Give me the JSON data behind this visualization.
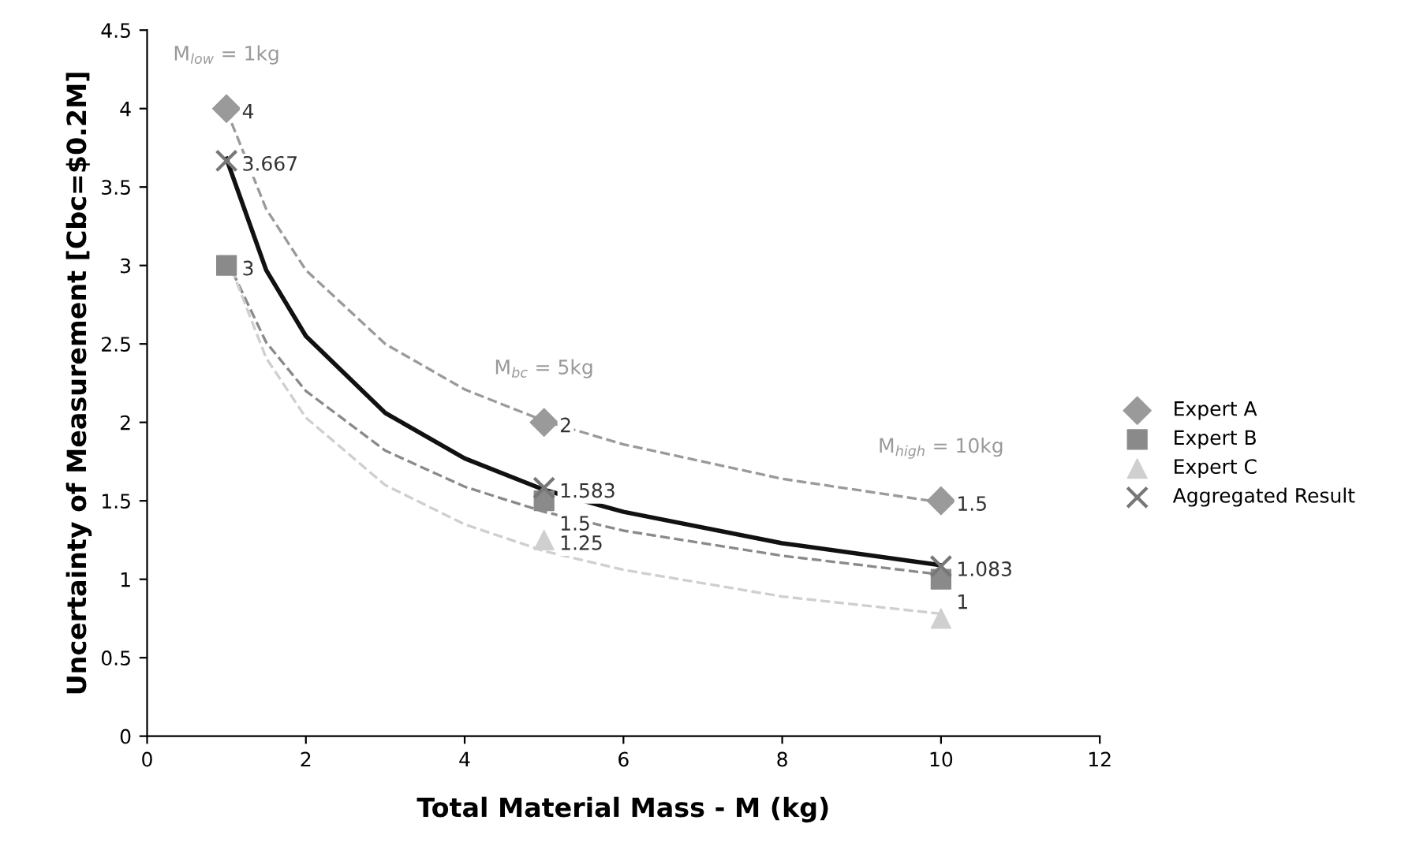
{
  "chart_data": {
    "type": "scatter",
    "xlabel": "Total Material Mass - M (kg)",
    "ylabel": "Uncertainty of Measurement [Cbc=$0.2M]",
    "x": [
      1,
      5,
      10
    ],
    "series": [
      {
        "type": "line",
        "color": "#9a9a9a",
        "line_style": "dashed",
        "x": [
          1,
          1.5,
          2,
          3,
          4,
          5,
          6,
          8,
          10
        ],
        "values": [
          3.99,
          3.36,
          2.97,
          2.5,
          2.21,
          2.01,
          1.86,
          1.64,
          1.49
        ]
      },
      {
        "type": "line",
        "color": "#8a8a8a",
        "line_style": "dashed",
        "x": [
          1,
          1.5,
          2,
          3,
          4,
          5,
          6,
          8,
          10
        ],
        "values": [
          3.04,
          2.51,
          2.2,
          1.82,
          1.59,
          1.43,
          1.31,
          1.15,
          1.03
        ]
      },
      {
        "type": "line",
        "color": "#cfcfcf",
        "line_style": "dashed",
        "x": [
          1,
          1.5,
          2,
          3,
          4,
          5,
          6,
          8,
          10
        ],
        "values": [
          3.06,
          2.41,
          2.03,
          1.6,
          1.35,
          1.18,
          1.06,
          0.89,
          0.78
        ]
      },
      {
        "type": "line",
        "color": "#111111",
        "line_style": "solid",
        "x": [
          1,
          1.5,
          2,
          3,
          4,
          5,
          6,
          8,
          10
        ],
        "values": [
          3.68,
          2.97,
          2.55,
          2.06,
          1.77,
          1.57,
          1.43,
          1.23,
          1.09
        ]
      },
      {
        "name": "Expert A",
        "color": "#9a9a9a",
        "values": [
          4,
          2,
          1.5
        ],
        "marker": "diamond",
        "value_labels": [
          "4",
          "2",
          "1.5"
        ]
      },
      {
        "name": "Expert B",
        "color": "#8a8a8a",
        "values": [
          3,
          1.5,
          1
        ],
        "marker": "square",
        "value_labels": [
          "3",
          "1.5",
          "1"
        ]
      },
      {
        "name": "Expert C",
        "color": "#cfcfcf",
        "values": [
          null,
          1.25,
          0.75
        ],
        "marker": "triangle",
        "value_labels": [
          null,
          "1.25",
          null
        ]
      },
      {
        "name": "Aggregated Result",
        "color": "#777777",
        "values": [
          3.667,
          1.583,
          1.083
        ],
        "marker": "cross",
        "value_labels": [
          "3.667",
          "1.583",
          "1.083"
        ]
      }
    ],
    "annotations": [
      {
        "text": "M$_{low}$ = 1kg",
        "x": 1,
        "y": 4
      },
      {
        "text": "M$_{bc}$ = 5kg",
        "x": 5,
        "y": 2
      },
      {
        "text": "M$_{high}$ = 10kg",
        "x": 10,
        "y": 1.5
      }
    ],
    "xlim": [
      0,
      12
    ],
    "xticks": [
      0,
      2,
      4,
      6,
      8,
      10,
      12
    ],
    "ylim": [
      0,
      4.5
    ],
    "yticks": [
      0,
      0.5,
      1,
      1.5,
      2,
      2.5,
      3,
      3.5,
      4,
      4.5
    ],
    "grid": false,
    "legend": "right"
  }
}
